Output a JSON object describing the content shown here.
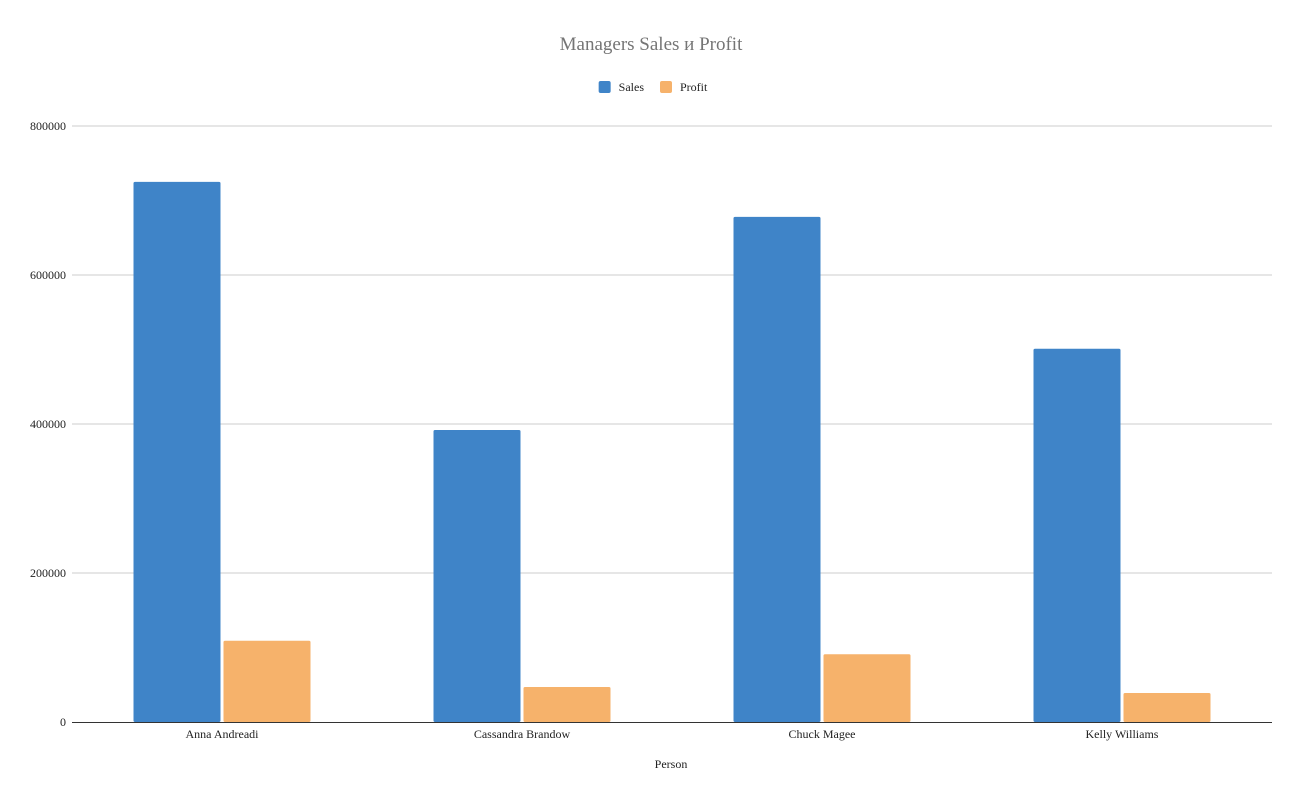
{
  "chart_data": {
    "type": "bar",
    "title": "Managers Sales и Profit",
    "xlabel": "Person",
    "ylabel": "",
    "categories": [
      "Anna Andreadi",
      "Cassandra Brandow",
      "Chuck Magee",
      "Kelly Williams"
    ],
    "series": [
      {
        "name": "Sales",
        "color": "#3f84c8",
        "values": [
          725000,
          392000,
          678000,
          501000
        ]
      },
      {
        "name": "Profit",
        "color": "#f6b26b",
        "values": [
          109000,
          47000,
          91000,
          39000
        ]
      }
    ],
    "ylim": [
      0,
      800000
    ],
    "yticks": [
      "0",
      "200000",
      "400000",
      "600000",
      "800000"
    ],
    "grid": true,
    "legend_position": "top-center"
  }
}
